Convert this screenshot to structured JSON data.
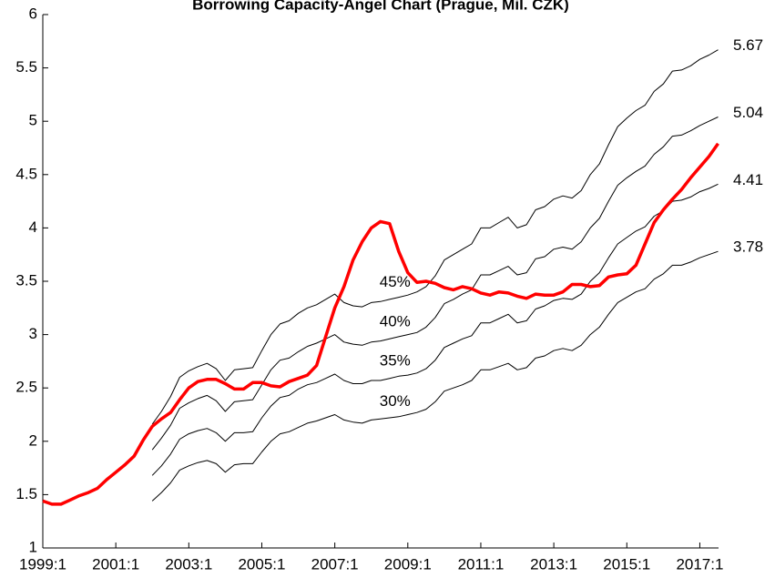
{
  "chart_data": {
    "type": "line",
    "title": "Borrowing Capacity-Angel Chart (Prague, Mil. CZK)",
    "categories": [
      "1999:1",
      null,
      null,
      null,
      null,
      null,
      null,
      null,
      "2001:1",
      null,
      null,
      null,
      null,
      null,
      null,
      null,
      "2003:1",
      null,
      null,
      null,
      null,
      null,
      null,
      null,
      "2005:1",
      null,
      null,
      null,
      null,
      null,
      null,
      null,
      "2007:1",
      null,
      null,
      null,
      null,
      null,
      null,
      null,
      "2009:1",
      null,
      null,
      null,
      null,
      null,
      null,
      null,
      "2011:1",
      null,
      null,
      null,
      null,
      null,
      null,
      null,
      "2013:1",
      null,
      null,
      null,
      null,
      null,
      null,
      null,
      "2015:1",
      null,
      null,
      null,
      null,
      null,
      null,
      null,
      "2017:1",
      null,
      null
    ],
    "ylim": [
      1,
      6
    ],
    "yticks": [
      1,
      1.5,
      2,
      2.5,
      3,
      3.5,
      4,
      4.5,
      5,
      5.5,
      6
    ],
    "series": [
      {
        "color": "#ff0000",
        "values": [
          1.44,
          1.41,
          1.41,
          1.45,
          1.49,
          1.52,
          1.56,
          1.64,
          1.71,
          1.78,
          1.86,
          2.01,
          2.14,
          2.21,
          2.27,
          2.39,
          2.5,
          2.56,
          2.58,
          2.58,
          2.54,
          2.49,
          2.49,
          2.55,
          2.55,
          2.52,
          2.51,
          2.56,
          2.59,
          2.62,
          2.71,
          2.98,
          3.25,
          3.45,
          3.7,
          3.87,
          4.0,
          4.06,
          4.04,
          3.78,
          3.58,
          3.49,
          3.5,
          3.48,
          3.44,
          3.42,
          3.45,
          3.43,
          3.39,
          3.37,
          3.4,
          3.39,
          3.36,
          3.34,
          3.38,
          3.37,
          3.37,
          3.4,
          3.47,
          3.47,
          3.45,
          3.46,
          3.54,
          3.56,
          3.57,
          3.65,
          3.85,
          4.05,
          4.17,
          4.27,
          4.36,
          4.47,
          4.57,
          4.67,
          4.79
        ]
      },
      {
        "name": "45%",
        "color": "#000000",
        "values": [
          null,
          null,
          null,
          null,
          null,
          null,
          null,
          null,
          null,
          null,
          null,
          null,
          2.16,
          2.28,
          2.42,
          2.6,
          2.66,
          2.7,
          2.73,
          2.68,
          2.57,
          2.67,
          2.68,
          2.69,
          2.85,
          3.0,
          3.1,
          3.13,
          3.2,
          3.25,
          3.28,
          3.33,
          3.38,
          3.3,
          3.27,
          3.26,
          3.3,
          3.31,
          3.33,
          3.35,
          3.37,
          3.4,
          3.45,
          3.55,
          3.7,
          3.75,
          3.8,
          3.85,
          4.0,
          4.0,
          4.05,
          4.1,
          4.0,
          4.03,
          4.17,
          4.2,
          4.27,
          4.3,
          4.28,
          4.35,
          4.5,
          4.6,
          4.78,
          4.95,
          5.03,
          5.1,
          5.15,
          5.28,
          5.35,
          5.47,
          5.48,
          5.52,
          5.58,
          5.62,
          5.67
        ]
      },
      {
        "name": "40%",
        "color": "#000000",
        "values": [
          null,
          null,
          null,
          null,
          null,
          null,
          null,
          null,
          null,
          null,
          null,
          null,
          1.92,
          2.03,
          2.15,
          2.31,
          2.36,
          2.4,
          2.43,
          2.38,
          2.28,
          2.37,
          2.38,
          2.39,
          2.53,
          2.67,
          2.76,
          2.78,
          2.84,
          2.89,
          2.92,
          2.96,
          3.0,
          2.93,
          2.91,
          2.9,
          2.93,
          2.94,
          2.96,
          2.98,
          3.0,
          3.02,
          3.07,
          3.16,
          3.29,
          3.33,
          3.38,
          3.42,
          3.56,
          3.56,
          3.6,
          3.64,
          3.56,
          3.58,
          3.71,
          3.73,
          3.8,
          3.82,
          3.8,
          3.87,
          4.0,
          4.09,
          4.25,
          4.4,
          4.47,
          4.53,
          4.58,
          4.69,
          4.76,
          4.86,
          4.87,
          4.91,
          4.96,
          5.0,
          5.04
        ]
      },
      {
        "name": "35%",
        "color": "#000000",
        "values": [
          null,
          null,
          null,
          null,
          null,
          null,
          null,
          null,
          null,
          null,
          null,
          null,
          1.68,
          1.77,
          1.88,
          2.02,
          2.07,
          2.1,
          2.12,
          2.08,
          2.0,
          2.08,
          2.08,
          2.09,
          2.22,
          2.33,
          2.41,
          2.43,
          2.49,
          2.53,
          2.55,
          2.59,
          2.63,
          2.57,
          2.54,
          2.54,
          2.57,
          2.57,
          2.59,
          2.61,
          2.62,
          2.64,
          2.68,
          2.76,
          2.88,
          2.92,
          2.96,
          2.99,
          3.11,
          3.11,
          3.15,
          3.19,
          3.11,
          3.13,
          3.24,
          3.27,
          3.32,
          3.34,
          3.33,
          3.38,
          3.5,
          3.58,
          3.72,
          3.85,
          3.91,
          3.97,
          4.01,
          4.11,
          4.16,
          4.25,
          4.26,
          4.29,
          4.34,
          4.37,
          4.41
        ]
      },
      {
        "name": "30%",
        "color": "#000000",
        "values": [
          null,
          null,
          null,
          null,
          null,
          null,
          null,
          null,
          null,
          null,
          null,
          null,
          1.44,
          1.52,
          1.61,
          1.73,
          1.77,
          1.8,
          1.82,
          1.79,
          1.71,
          1.78,
          1.79,
          1.79,
          1.9,
          2.0,
          2.07,
          2.09,
          2.13,
          2.17,
          2.19,
          2.22,
          2.25,
          2.2,
          2.18,
          2.17,
          2.2,
          2.21,
          2.22,
          2.23,
          2.25,
          2.27,
          2.3,
          2.37,
          2.47,
          2.5,
          2.53,
          2.57,
          2.67,
          2.67,
          2.7,
          2.73,
          2.67,
          2.69,
          2.78,
          2.8,
          2.85,
          2.87,
          2.85,
          2.9,
          3.0,
          3.07,
          3.19,
          3.3,
          3.35,
          3.4,
          3.43,
          3.52,
          3.57,
          3.65,
          3.65,
          3.68,
          3.72,
          3.75,
          3.78
        ]
      }
    ]
  }
}
